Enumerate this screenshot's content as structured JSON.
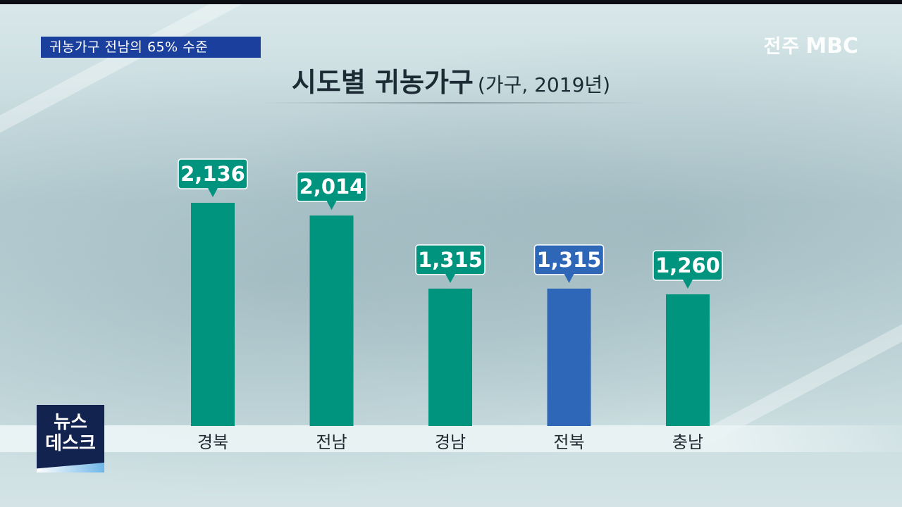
{
  "caption": "귀농가구 전남의 65% 수준",
  "logo": {
    "station": "전주",
    "brand": "MBC"
  },
  "news_badge": {
    "line1": "뉴스",
    "line2": "데스크"
  },
  "colors": {
    "bar": "#00947e",
    "highlight": "#2f67b8",
    "caption_bg": "#1b3f9c"
  },
  "chart_data": {
    "type": "bar",
    "title": "시도별 귀농가구",
    "subtitle": "(가구, 2019년)",
    "categories": [
      "경북",
      "전남",
      "경남",
      "전북",
      "충남"
    ],
    "values": [
      2136,
      2014,
      1315,
      1315,
      1260
    ],
    "value_labels": [
      "2,136",
      "2,014",
      "1,315",
      "1,315",
      "1,260"
    ],
    "highlight": "전북",
    "grid": false,
    "xlabel": "",
    "ylabel": ""
  }
}
